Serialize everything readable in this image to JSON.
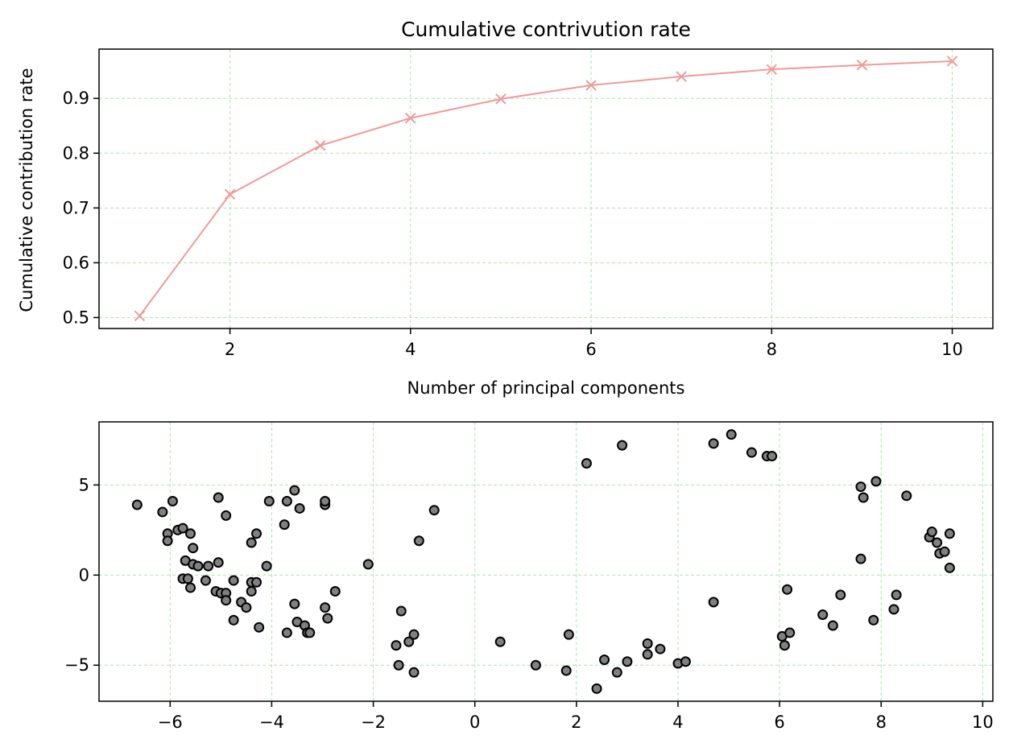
{
  "chart_data": [
    {
      "type": "line",
      "title": "Cumulative contrivution rate",
      "xlabel": "Number of principal components",
      "ylabel": "Cumulative contribution rate",
      "xlim": [
        0.55,
        10.45
      ],
      "ylim": [
        0.48,
        0.99
      ],
      "xticks": [
        2,
        4,
        6,
        8,
        10
      ],
      "yticks": [
        0.5,
        0.6,
        0.7,
        0.8,
        0.9
      ],
      "grid": true,
      "line_color": "#ef9a9a",
      "grid_color": "#b5dfb5",
      "marker": "x",
      "x": [
        1,
        2,
        3,
        4,
        5,
        6,
        7,
        8,
        9,
        10
      ],
      "y": [
        0.503,
        0.725,
        0.814,
        0.864,
        0.899,
        0.924,
        0.94,
        0.953,
        0.961,
        0.968
      ]
    },
    {
      "type": "scatter",
      "title": "",
      "xlabel": "",
      "ylabel": "",
      "xlim": [
        -7.4,
        10.2
      ],
      "ylim": [
        -7.0,
        8.5
      ],
      "xticks": [
        -6,
        -4,
        -2,
        0,
        2,
        4,
        6,
        8,
        10
      ],
      "yticks": [
        -5,
        0,
        5
      ],
      "grid": true,
      "marker_face": "#808080",
      "marker_edge": "#000000",
      "grid_color": "#b5dfb5",
      "points": [
        [
          -6.65,
          3.9
        ],
        [
          -6.15,
          3.5
        ],
        [
          -5.95,
          4.1
        ],
        [
          -6.05,
          2.3
        ],
        [
          -6.05,
          1.9
        ],
        [
          -5.85,
          2.5
        ],
        [
          -5.75,
          2.6
        ],
        [
          -5.6,
          2.3
        ],
        [
          -5.55,
          1.5
        ],
        [
          -5.7,
          0.8
        ],
        [
          -5.55,
          0.6
        ],
        [
          -5.45,
          0.5
        ],
        [
          -5.25,
          0.5
        ],
        [
          -5.05,
          0.7
        ],
        [
          -5.75,
          -0.2
        ],
        [
          -5.65,
          -0.2
        ],
        [
          -5.6,
          -0.7
        ],
        [
          -5.3,
          -0.3
        ],
        [
          -5.1,
          -0.9
        ],
        [
          -5.0,
          -1.0
        ],
        [
          -4.9,
          -1.0
        ],
        [
          -4.9,
          -1.4
        ],
        [
          -4.75,
          -0.3
        ],
        [
          -4.6,
          -1.5
        ],
        [
          -4.5,
          -1.8
        ],
        [
          -4.75,
          -2.5
        ],
        [
          -4.4,
          -0.9
        ],
        [
          -4.4,
          -0.4
        ],
        [
          -4.3,
          -0.4
        ],
        [
          -4.25,
          -2.9
        ],
        [
          -5.05,
          4.3
        ],
        [
          -4.9,
          3.3
        ],
        [
          -4.4,
          1.8
        ],
        [
          -4.3,
          2.3
        ],
        [
          -4.1,
          0.5
        ],
        [
          -4.05,
          4.1
        ],
        [
          -3.7,
          4.1
        ],
        [
          -3.55,
          4.7
        ],
        [
          -3.45,
          3.7
        ],
        [
          -3.75,
          2.8
        ],
        [
          -2.95,
          3.9
        ],
        [
          -2.95,
          4.1
        ],
        [
          -3.55,
          -1.6
        ],
        [
          -3.5,
          -2.6
        ],
        [
          -3.35,
          -2.8
        ],
        [
          -3.3,
          -3.2
        ],
        [
          -3.25,
          -3.2
        ],
        [
          -3.7,
          -3.2
        ],
        [
          -2.95,
          -1.8
        ],
        [
          -2.9,
          -2.4
        ],
        [
          -2.75,
          -0.9
        ],
        [
          -2.1,
          0.6
        ],
        [
          -1.55,
          -3.9
        ],
        [
          -1.5,
          -5.0
        ],
        [
          -1.45,
          -2.0
        ],
        [
          -1.3,
          -3.7
        ],
        [
          -1.2,
          -3.3
        ],
        [
          -1.2,
          -5.4
        ],
        [
          -1.1,
          1.9
        ],
        [
          -0.8,
          3.6
        ],
        [
          0.5,
          -3.7
        ],
        [
          1.2,
          -5.0
        ],
        [
          1.8,
          -5.3
        ],
        [
          1.85,
          -3.3
        ],
        [
          2.2,
          6.2
        ],
        [
          2.4,
          -6.3
        ],
        [
          2.55,
          -4.7
        ],
        [
          2.8,
          -5.4
        ],
        [
          2.9,
          7.2
        ],
        [
          3.0,
          -4.8
        ],
        [
          3.4,
          -3.8
        ],
        [
          3.4,
          -4.4
        ],
        [
          3.65,
          -4.1
        ],
        [
          4.0,
          -4.9
        ],
        [
          4.15,
          -4.8
        ],
        [
          4.7,
          7.3
        ],
        [
          4.7,
          -1.5
        ],
        [
          5.05,
          7.8
        ],
        [
          5.45,
          6.8
        ],
        [
          5.75,
          6.6
        ],
        [
          5.85,
          6.6
        ],
        [
          6.05,
          -3.4
        ],
        [
          6.1,
          -3.9
        ],
        [
          6.15,
          -0.8
        ],
        [
          6.2,
          -3.2
        ],
        [
          6.85,
          -2.2
        ],
        [
          7.05,
          -2.8
        ],
        [
          7.2,
          -1.1
        ],
        [
          7.6,
          0.9
        ],
        [
          7.6,
          4.9
        ],
        [
          7.65,
          4.3
        ],
        [
          7.85,
          -2.5
        ],
        [
          7.9,
          5.2
        ],
        [
          8.25,
          -1.9
        ],
        [
          8.3,
          -1.1
        ],
        [
          8.5,
          4.4
        ],
        [
          8.95,
          2.1
        ],
        [
          9.0,
          2.4
        ],
        [
          9.1,
          1.8
        ],
        [
          9.15,
          1.2
        ],
        [
          9.25,
          1.3
        ],
        [
          9.35,
          2.3
        ],
        [
          9.35,
          0.4
        ]
      ]
    }
  ]
}
